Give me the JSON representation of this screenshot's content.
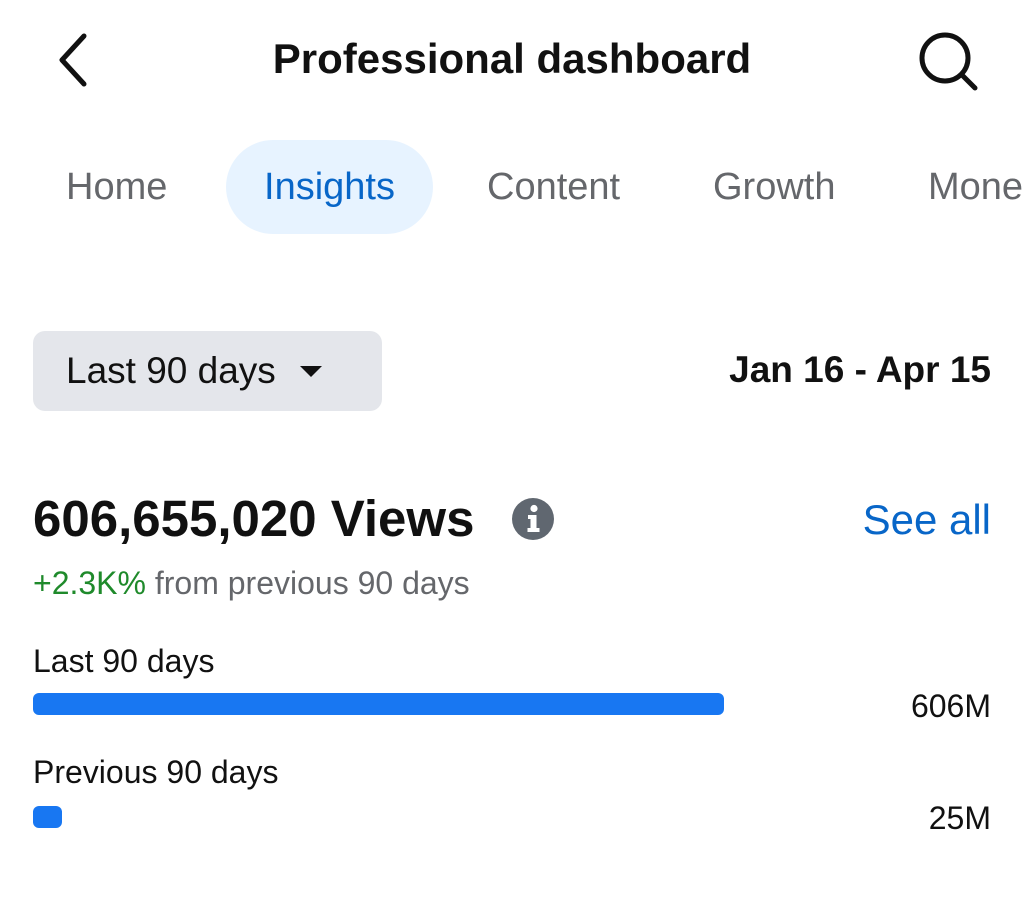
{
  "header": {
    "title": "Professional dashboard",
    "back_icon": "chevron-left-icon",
    "search_icon": "search-icon"
  },
  "tabs": [
    {
      "label": "Home",
      "active": false
    },
    {
      "label": "Insights",
      "active": true
    },
    {
      "label": "Content",
      "active": false
    },
    {
      "label": "Growth",
      "active": false
    },
    {
      "label": "Mone",
      "active": false
    }
  ],
  "filter": {
    "selected": "Last 90 days",
    "date_range": "Jan 16 - Apr 15"
  },
  "views": {
    "title": "606,655,020 Views",
    "info_icon": "info-icon",
    "see_all": "See all",
    "change_value": "+2.3K%",
    "change_text": " from previous 90 days"
  },
  "comparison": [
    {
      "label": "Last 90 days",
      "value_label": "606M",
      "value": 606
    },
    {
      "label": "Previous 90 days",
      "value_label": "25M",
      "value": 25
    }
  ],
  "colors": {
    "accent": "#0866c8",
    "bar": "#1877f2",
    "positive": "#1f8a2b",
    "active_tab_bg": "#e7f3ff"
  }
}
